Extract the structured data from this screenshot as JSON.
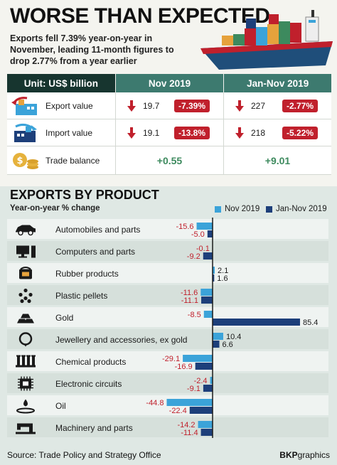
{
  "headline": "WORSE THAN EXPECTED",
  "subheadline": "Exports fell 7.39% year-on-year in November, leading 11-month figures to drop 2.77% from a year earlier",
  "table": {
    "unit_label": "Unit: US$ billion",
    "col1": "Nov 2019",
    "col2": "Jan-Nov 2019",
    "rows": [
      {
        "label": "Export value",
        "nov_value": "19.7",
        "nov_change": "-7.39%",
        "ytd_value": "227",
        "ytd_change": "-2.77%",
        "icon": "export-icon"
      },
      {
        "label": "Import value",
        "nov_value": "19.1",
        "nov_change": "-13.8%",
        "ytd_value": "218",
        "ytd_change": "-5.22%",
        "icon": "import-icon"
      }
    ],
    "balance": {
      "label": "Trade balance",
      "nov": "+0.55",
      "ytd": "+9.01",
      "icon": "coins-icon"
    }
  },
  "chart_data": {
    "type": "bar",
    "orientation": "horizontal",
    "title": "EXPORTS BY PRODUCT",
    "subtitle": "Year-on-year % change",
    "categories": [
      "Automobiles and parts",
      "Computers and parts",
      "Rubber products",
      "Plastic pellets",
      "Gold",
      "Jewellery and accessories, ex gold",
      "Chemical products",
      "Electronic circuits",
      "Oil",
      "Machinery and parts"
    ],
    "series": [
      {
        "name": "Nov 2019",
        "values": [
          -15.6,
          -0.1,
          2.1,
          -11.6,
          -8.5,
          10.4,
          -29.1,
          -2.4,
          -44.8,
          -14.2
        ],
        "labels": [
          "-15.6",
          "-0.1",
          "2.1",
          "-11.6",
          "-8.5",
          "10.4",
          "-29.1",
          "-2.4",
          "-44.8",
          "-14.2"
        ]
      },
      {
        "name": "Jan-Nov 2019",
        "values": [
          -5.0,
          -9.2,
          1.6,
          -11.1,
          85.4,
          6.6,
          -16.9,
          -9.1,
          -22.4,
          -11.4
        ],
        "labels": [
          "-5.0",
          "-9.2",
          "1.6",
          "-11.1",
          "85.4",
          "6.6",
          "-16.9",
          "-9.1",
          "-22.4",
          "-11.4"
        ]
      }
    ],
    "icons": [
      "car-icon",
      "computer-icon",
      "rubber-icon",
      "pellets-icon",
      "gold-icon",
      "jewellery-icon",
      "chemical-icon",
      "circuit-icon",
      "oil-icon",
      "sewing-machine-icon"
    ],
    "colors": {
      "nov": "#3ba3d9",
      "ytd": "#1d3f7a",
      "negative_label": "#c0202c",
      "positive_label": "#1a1a1a"
    },
    "legend_position": "top-right"
  },
  "source": "Source: Trade Policy and Strategy Office",
  "brand": {
    "bold": "BKP",
    "rest": "graphics"
  }
}
